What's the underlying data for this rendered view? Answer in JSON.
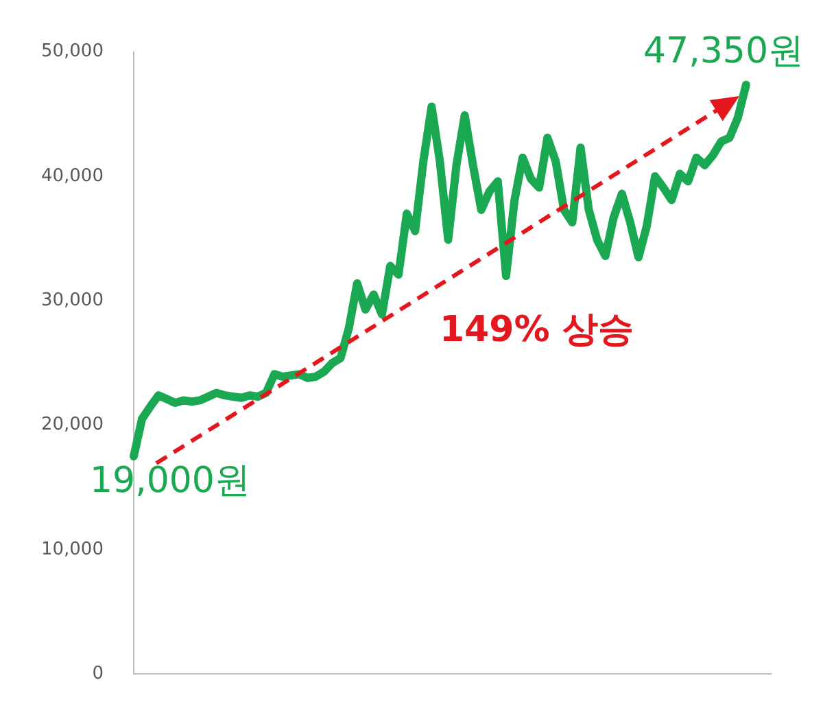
{
  "chart_data": {
    "type": "line",
    "categories": [
      null,
      null,
      null,
      null,
      null,
      null,
      null,
      null,
      null,
      null,
      null,
      null,
      null,
      null,
      null,
      null,
      null,
      null,
      null,
      null,
      null,
      null,
      null,
      null,
      null,
      null,
      null,
      null,
      null,
      null,
      null,
      null,
      null,
      null,
      null,
      null,
      null,
      null,
      null,
      null,
      null,
      null,
      null,
      null,
      null,
      null,
      null,
      null,
      null,
      null,
      null,
      null,
      null,
      null,
      null,
      null,
      null,
      null,
      null,
      null,
      null,
      null,
      null,
      null,
      null,
      null,
      null,
      null,
      null,
      null,
      null,
      null,
      null,
      null,
      null,
      null,
      null,
      null
    ],
    "series": [
      {
        "color": "#1aa852",
        "values": [
          17500,
          20500,
          21500,
          22400,
          22100,
          21800,
          22000,
          21900,
          22000,
          22300,
          22600,
          22400,
          22300,
          22200,
          22400,
          22300,
          22600,
          24100,
          23900,
          24000,
          24100,
          23800,
          23900,
          24300,
          25000,
          25400,
          27800,
          31400,
          29300,
          30500,
          28900,
          32800,
          32100,
          37000,
          35600,
          41200,
          45600,
          41200,
          34900,
          40900,
          44900,
          40900,
          37300,
          38800,
          39600,
          32000,
          38000,
          41500,
          39800,
          39100,
          43100,
          41200,
          37300,
          36300,
          42300,
          37300,
          34900,
          33600,
          36700,
          38600,
          36300,
          33500,
          36000,
          40000,
          39100,
          38100,
          40200,
          39600,
          41500,
          40900,
          41700,
          42800,
          43100,
          44700,
          47350,
          null,
          null,
          null
        ]
      }
    ],
    "ylim": [
      0,
      50000
    ],
    "yticks": [
      0,
      {
        "value": 10000,
        "label": "10,000"
      },
      {
        "value": 20000,
        "label": "20,000"
      },
      {
        "value": 30000,
        "label": "30,000"
      },
      {
        "value": 40000,
        "label": "40,000"
      },
      {
        "value": 50000,
        "label": "50,000"
      }
    ],
    "grid": false,
    "legend": false,
    "marker": "none",
    "annotations": [
      "19,000원",
      "47,350원",
      "149% 상승"
    ]
  }
}
